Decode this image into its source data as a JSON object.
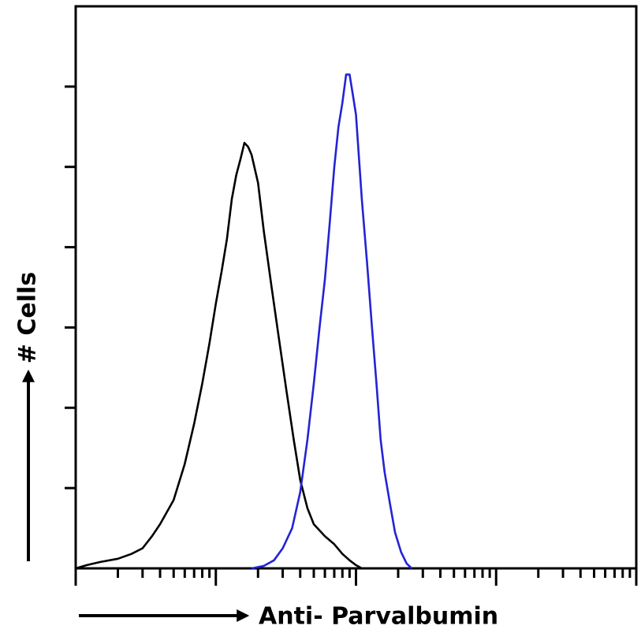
{
  "chart_data": {
    "type": "line",
    "title": "",
    "xlabel": "Anti- Parvalbumin",
    "ylabel": "# Cells",
    "x_scale": "log",
    "xlim": [
      1,
      10000
    ],
    "ylim": [
      0,
      7
    ],
    "grid": false,
    "legend": "none",
    "series": [
      {
        "color": "#000000",
        "points": [
          [
            1.0,
            0.0
          ],
          [
            1.2,
            0.04
          ],
          [
            1.5,
            0.08
          ],
          [
            2.0,
            0.12
          ],
          [
            2.5,
            0.18
          ],
          [
            3.0,
            0.25
          ],
          [
            3.5,
            0.4
          ],
          [
            4.0,
            0.55
          ],
          [
            5.0,
            0.85
          ],
          [
            6.0,
            1.3
          ],
          [
            7.0,
            1.8
          ],
          [
            8.0,
            2.3
          ],
          [
            9.0,
            2.8
          ],
          [
            10.0,
            3.3
          ],
          [
            11.0,
            3.7
          ],
          [
            12.0,
            4.1
          ],
          [
            13.0,
            4.6
          ],
          [
            14.0,
            4.9
          ],
          [
            15.0,
            5.1
          ],
          [
            16.0,
            5.3
          ],
          [
            17.0,
            5.25
          ],
          [
            18.0,
            5.15
          ],
          [
            20.0,
            4.8
          ],
          [
            22.0,
            4.2
          ],
          [
            25.0,
            3.5
          ],
          [
            28.0,
            2.9
          ],
          [
            32.0,
            2.2
          ],
          [
            36.0,
            1.6
          ],
          [
            40.0,
            1.1
          ],
          [
            45.0,
            0.75
          ],
          [
            50.0,
            0.55
          ],
          [
            60.0,
            0.4
          ],
          [
            70.0,
            0.3
          ],
          [
            80.0,
            0.18
          ],
          [
            90.0,
            0.1
          ],
          [
            100.0,
            0.04
          ],
          [
            110.0,
            0.0
          ]
        ]
      },
      {
        "color": "#2323d6",
        "points": [
          [
            18.0,
            0.0
          ],
          [
            22.0,
            0.03
          ],
          [
            26.0,
            0.1
          ],
          [
            30.0,
            0.25
          ],
          [
            35.0,
            0.5
          ],
          [
            40.0,
            0.95
          ],
          [
            45.0,
            1.6
          ],
          [
            50.0,
            2.3
          ],
          [
            55.0,
            3.0
          ],
          [
            60.0,
            3.6
          ],
          [
            65.0,
            4.3
          ],
          [
            70.0,
            5.0
          ],
          [
            75.0,
            5.5
          ],
          [
            80.0,
            5.8
          ],
          [
            85.0,
            6.15
          ],
          [
            90.0,
            6.15
          ],
          [
            95.0,
            5.9
          ],
          [
            100.0,
            5.65
          ],
          [
            110.0,
            4.6
          ],
          [
            120.0,
            3.8
          ],
          [
            130.0,
            3.0
          ],
          [
            140.0,
            2.3
          ],
          [
            150.0,
            1.6
          ],
          [
            160.0,
            1.2
          ],
          [
            175.0,
            0.8
          ],
          [
            190.0,
            0.45
          ],
          [
            210.0,
            0.2
          ],
          [
            230.0,
            0.06
          ],
          [
            250.0,
            0.0
          ]
        ]
      }
    ]
  }
}
